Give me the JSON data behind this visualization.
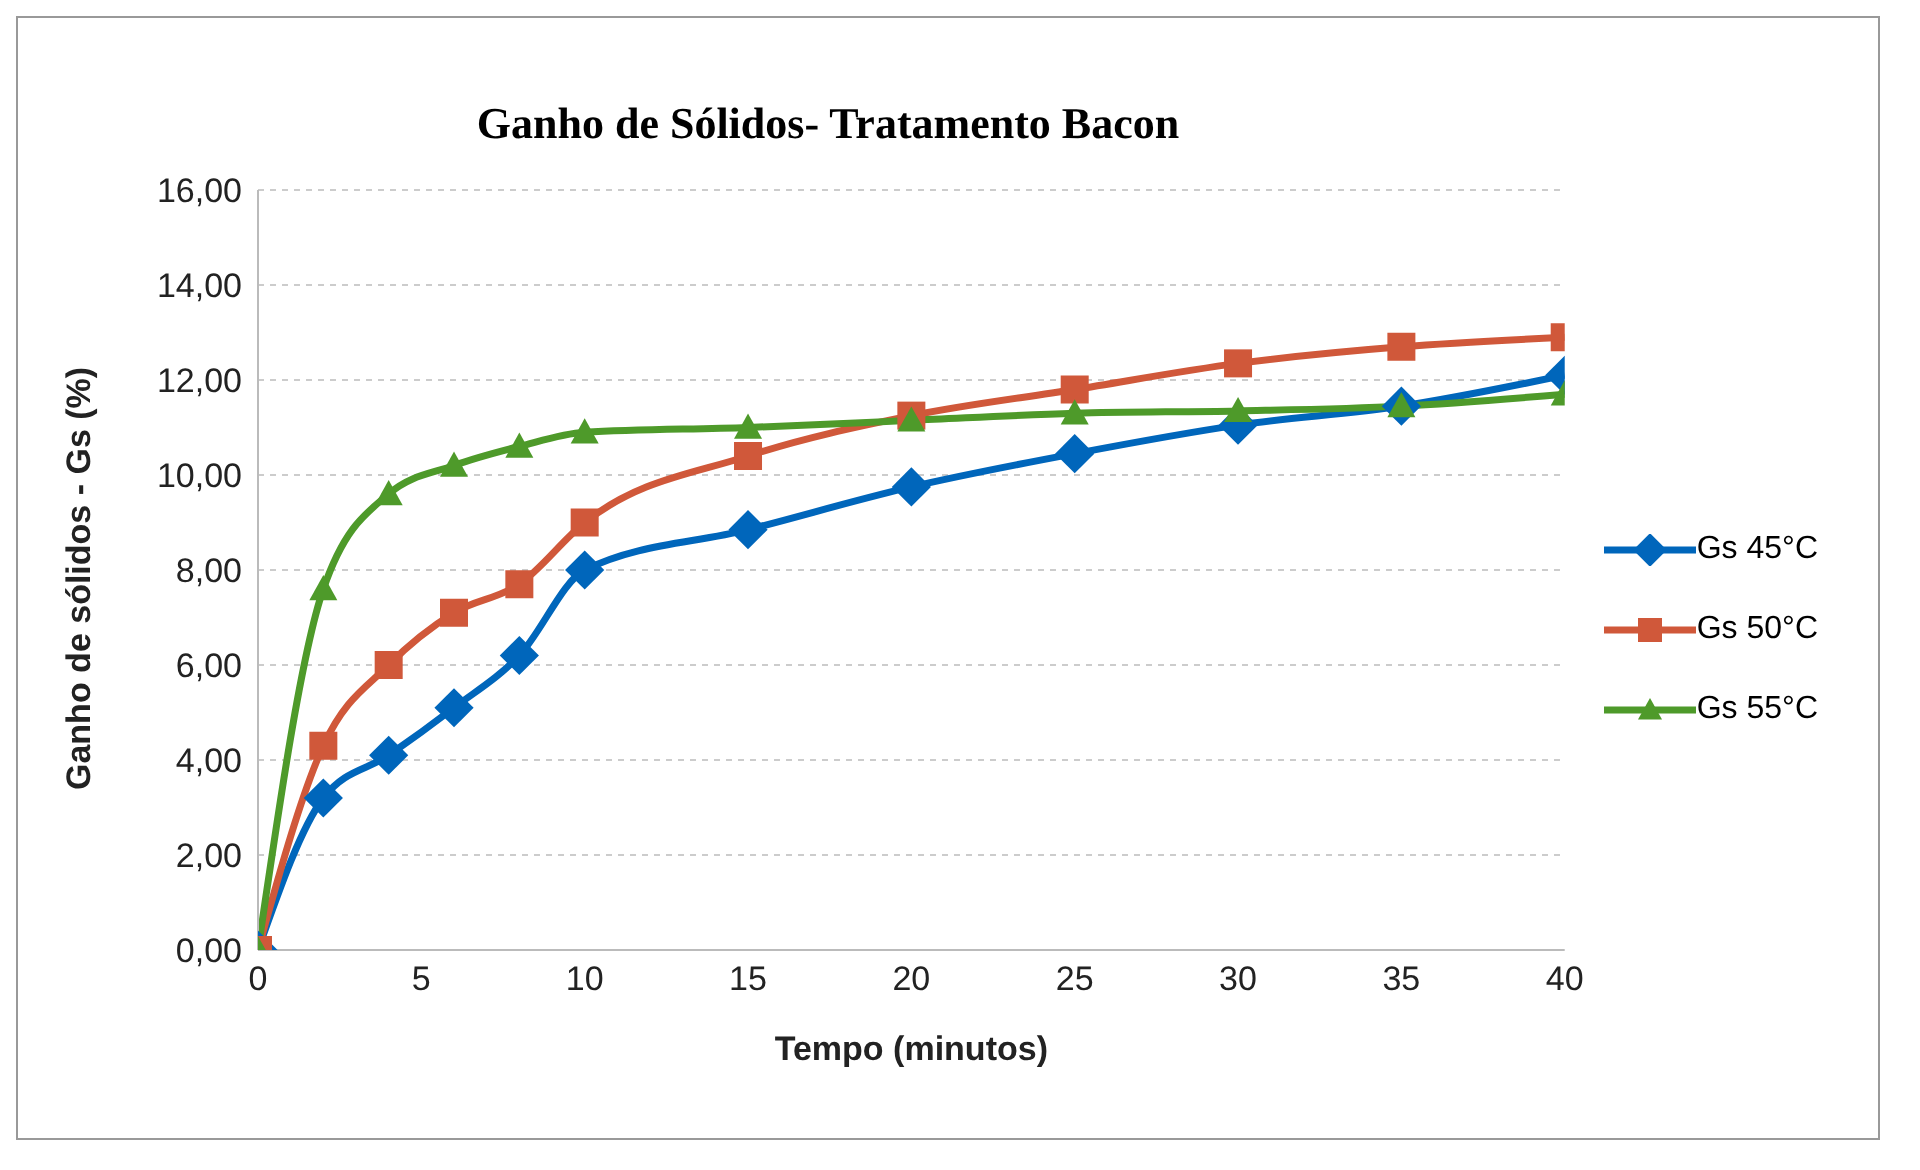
{
  "chart_data": {
    "type": "line",
    "title": "Ganho de Sólidos- Tratamento Bacon",
    "xlabel": "Tempo (minutos)",
    "ylabel": "Ganho de sólidos - Gs (%)",
    "x": [
      0,
      2,
      4,
      6,
      8,
      10,
      15,
      20,
      25,
      30,
      35,
      40
    ],
    "series": [
      {
        "name": "Gs 45°C",
        "color": "#0066bb",
        "marker": "diamond",
        "values": [
          0,
          3.2,
          4.1,
          5.1,
          6.2,
          8.0,
          8.85,
          9.75,
          10.45,
          11.05,
          11.45,
          12.1
        ]
      },
      {
        "name": "Gs 50°C",
        "color": "#d0583a",
        "marker": "square",
        "values": [
          0,
          4.3,
          6.0,
          7.1,
          7.7,
          9.0,
          10.4,
          11.25,
          11.8,
          12.35,
          12.7,
          12.9
        ]
      },
      {
        "name": "Gs 55°C",
        "color": "#4e9a2a",
        "marker": "triangle",
        "values": [
          0,
          7.6,
          9.6,
          10.2,
          10.6,
          10.9,
          11.0,
          11.15,
          11.3,
          11.35,
          11.45,
          11.7
        ]
      }
    ],
    "xlim": [
      0,
      40
    ],
    "xticks": [
      0,
      5,
      10,
      15,
      20,
      25,
      30,
      35,
      40
    ],
    "ylim": [
      0,
      16
    ],
    "yticks": [
      {
        "value": 0,
        "label": "0,00"
      },
      {
        "value": 2,
        "label": "2,00"
      },
      {
        "value": 4,
        "label": "4,00"
      },
      {
        "value": 6,
        "label": "6,00"
      },
      {
        "value": 8,
        "label": "8,00"
      },
      {
        "value": 10,
        "label": "10,00"
      },
      {
        "value": 12,
        "label": "12,00"
      },
      {
        "value": 14,
        "label": "14,00"
      },
      {
        "value": 16,
        "label": "16,00"
      }
    ],
    "grid": "y",
    "legend": "right"
  }
}
